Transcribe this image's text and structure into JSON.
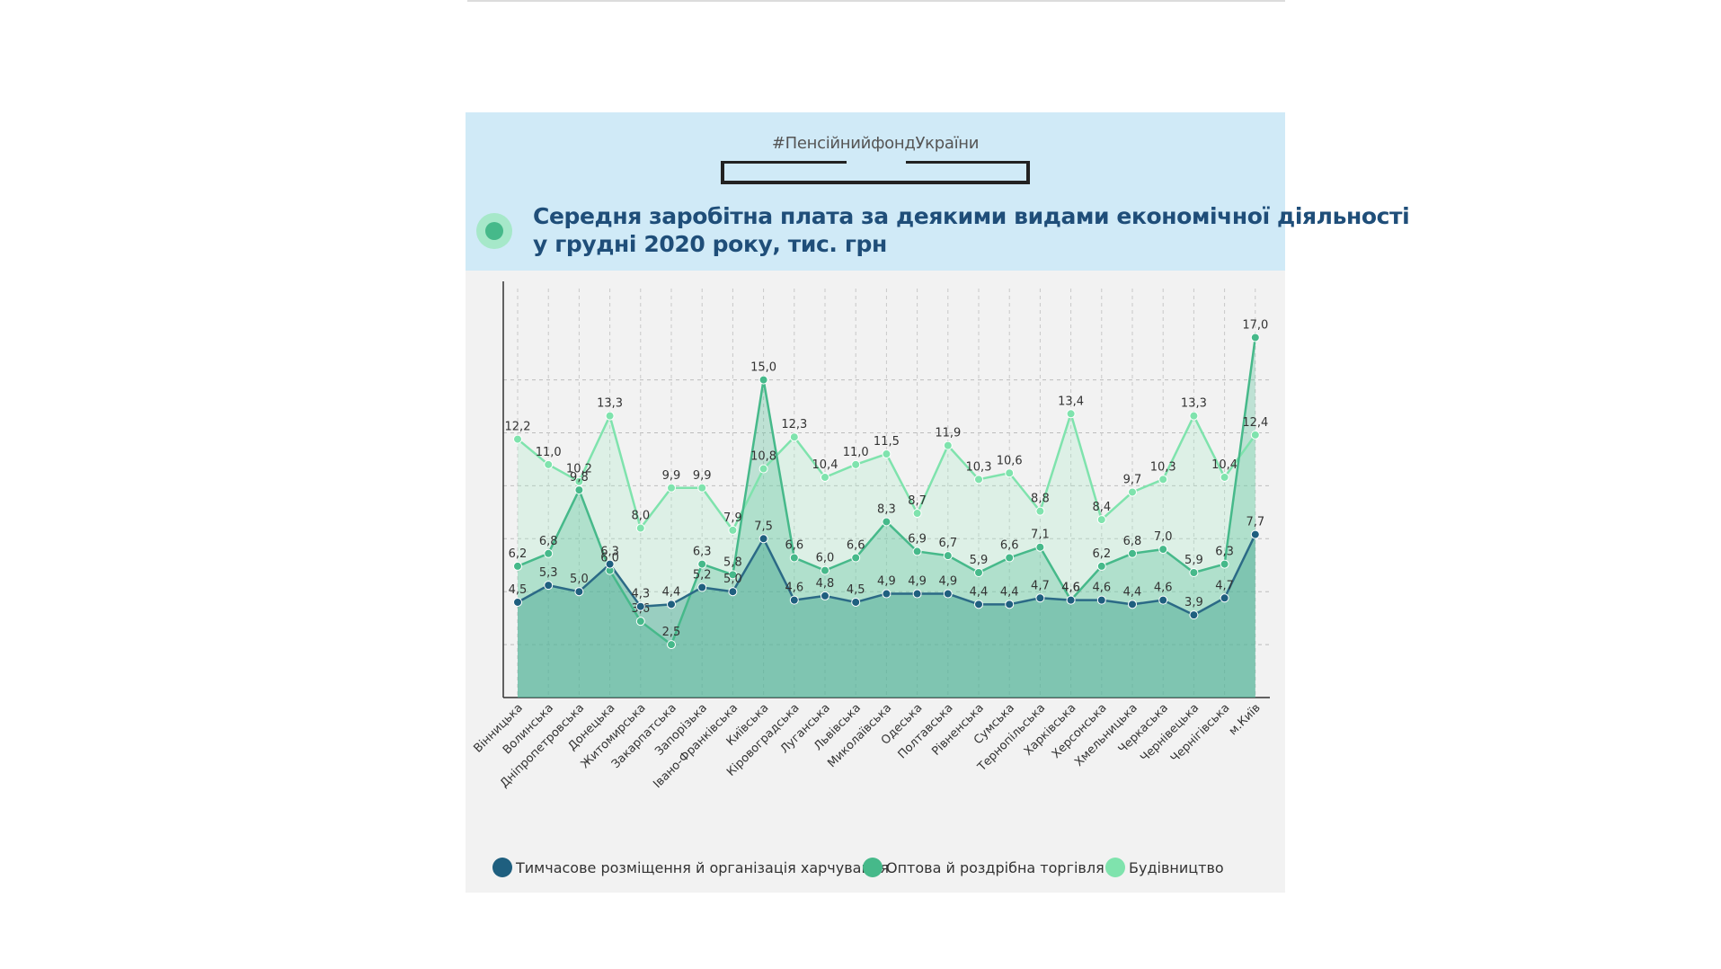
{
  "hashtag": "#ПенсійнийфондУкраїни",
  "title_line1": "Середня заробітна плата за деякими видами економічної діяльності",
  "title_line2": "у грудні 2020 року, тис. грн",
  "colors": {
    "header_bg": "#d0eaf7",
    "card_bg": "#f2f2f2",
    "title": "#1f4e79",
    "hospitality": "#2b6a86",
    "trade": "#46b98a",
    "construction": "#7fe3ad"
  },
  "legend": [
    {
      "label": "Тимчасове розміщення й організація харчування",
      "color": "#1f5f7f"
    },
    {
      "label": "Оптова й роздрібна торгівля",
      "color": "#46b98a"
    },
    {
      "label": "Будівництво",
      "color": "#7fe3ad"
    }
  ],
  "chart_data": {
    "type": "line",
    "title": "Середня заробітна плата за деякими видами економічної діяльності у грудні 2020 року, тис. грн",
    "categories": [
      "Вінницька",
      "Волинська",
      "Дніпропетровська",
      "Донецька",
      "Житомирська",
      "Закарпатська",
      "Запорізька",
      "Івано-Франківська",
      "Київська",
      "Кіровоградська",
      "Луганська",
      "Львівська",
      "Миколаївська",
      "Одеська",
      "Полтавська",
      "Рівненська",
      "Сумська",
      "Тернопільська",
      "Харківська",
      "Херсонська",
      "Хмельницька",
      "Черкаська",
      "Чернівецька",
      "Чернігівська",
      "м.Київ"
    ],
    "ylim": [
      0,
      17
    ],
    "grid": true,
    "legend_position": "bottom",
    "series": [
      {
        "name": "Будівництво",
        "values": [
          12.2,
          11.0,
          10.2,
          13.3,
          8.0,
          9.9,
          9.9,
          7.9,
          10.8,
          12.3,
          10.4,
          11.0,
          11.5,
          8.7,
          11.9,
          10.3,
          10.6,
          8.8,
          13.4,
          8.4,
          9.7,
          10.3,
          13.3,
          10.4,
          12.4
        ]
      },
      {
        "name": "Оптова й роздрібна торгівля",
        "values": [
          6.2,
          6.8,
          9.8,
          6.0,
          3.6,
          2.5,
          6.3,
          5.8,
          15.0,
          6.6,
          6.0,
          6.6,
          8.3,
          6.9,
          6.7,
          5.9,
          6.6,
          7.1,
          4.6,
          6.2,
          6.8,
          7.0,
          5.9,
          6.3,
          17.0
        ]
      },
      {
        "name": "Тимчасове розміщення й організація харчування",
        "values": [
          4.5,
          5.3,
          5.0,
          6.3,
          4.3,
          4.4,
          5.2,
          5.0,
          7.5,
          4.6,
          4.8,
          4.5,
          4.9,
          4.9,
          4.9,
          4.4,
          4.4,
          4.7,
          4.6,
          4.6,
          4.4,
          4.6,
          3.9,
          4.7,
          7.7
        ]
      }
    ]
  }
}
